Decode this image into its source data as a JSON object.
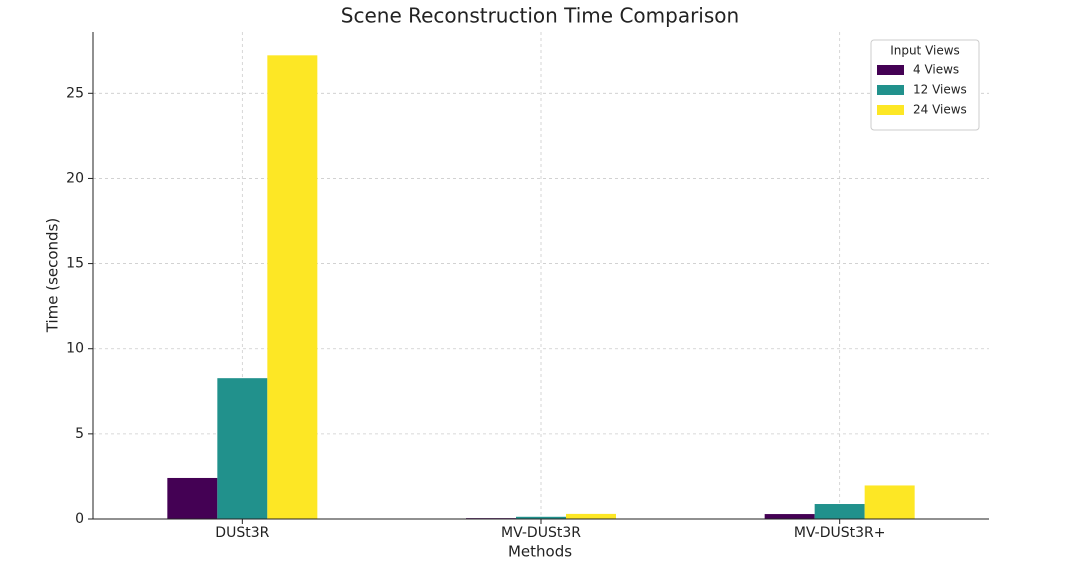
{
  "chart_data": {
    "type": "bar",
    "title": "Scene Reconstruction Time Comparison",
    "x_label": "Methods",
    "y_label": "Time (seconds)",
    "categories": [
      "DUSt3R",
      "MV-DUSt3R",
      "MV-DUSt3R+"
    ],
    "series": [
      {
        "name": "4 Views",
        "color": "#440154",
        "values": [
          2.41,
          0.05,
          0.29
        ]
      },
      {
        "name": "12 Views",
        "color": "#21918c",
        "values": [
          8.27,
          0.13,
          0.88
        ]
      },
      {
        "name": "24 Views",
        "color": "#fde725",
        "values": [
          27.23,
          0.3,
          1.97
        ]
      }
    ],
    "legend_title": "Input Views",
    "legend_position": "upper right",
    "ylim": [
      0,
      28.6
    ],
    "yticks": [
      0,
      5,
      10,
      15,
      20,
      25
    ],
    "grid": true
  }
}
